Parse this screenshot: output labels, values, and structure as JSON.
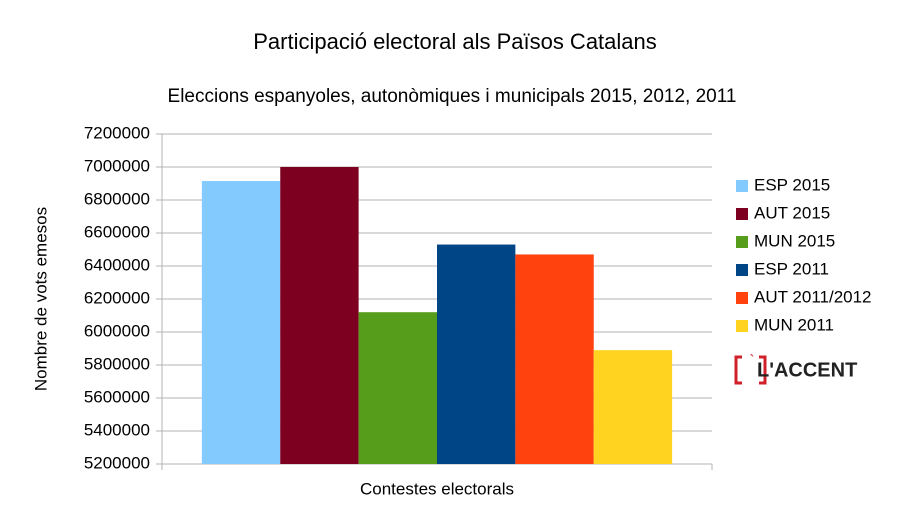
{
  "chart_data": {
    "type": "bar",
    "title": "Participació electoral als Països Catalans",
    "subtitle": "Eleccions espanyoles, autonòmiques i municipals 2015, 2012, 2011",
    "x_label": "Contestes electorals",
    "y_label": "Nombre de vots emesos",
    "categories": [
      null
    ],
    "series": [
      {
        "name": "ESP 2015",
        "color": "#83caff",
        "values": [
          6915000
        ]
      },
      {
        "name": "AUT 2015",
        "color": "#7e0021",
        "values": [
          7000000
        ]
      },
      {
        "name": "MUN 2015",
        "color": "#579d1c",
        "values": [
          6120000
        ]
      },
      {
        "name": "ESP 2011",
        "color": "#004586",
        "values": [
          6530000
        ]
      },
      {
        "name": "AUT 2011/2012",
        "color": "#ff420e",
        "values": [
          6470000
        ]
      },
      {
        "name": "MUN 2011",
        "color": "#ffd320",
        "values": [
          5890000
        ]
      }
    ],
    "ylim": [
      5200000,
      7200000
    ],
    "yticks": [
      5200000,
      5400000,
      5600000,
      5800000,
      6000000,
      6200000,
      6400000,
      6600000,
      6800000,
      7000000,
      7200000
    ],
    "grid": true,
    "legend": "right"
  },
  "logo": "L'ACCENT"
}
